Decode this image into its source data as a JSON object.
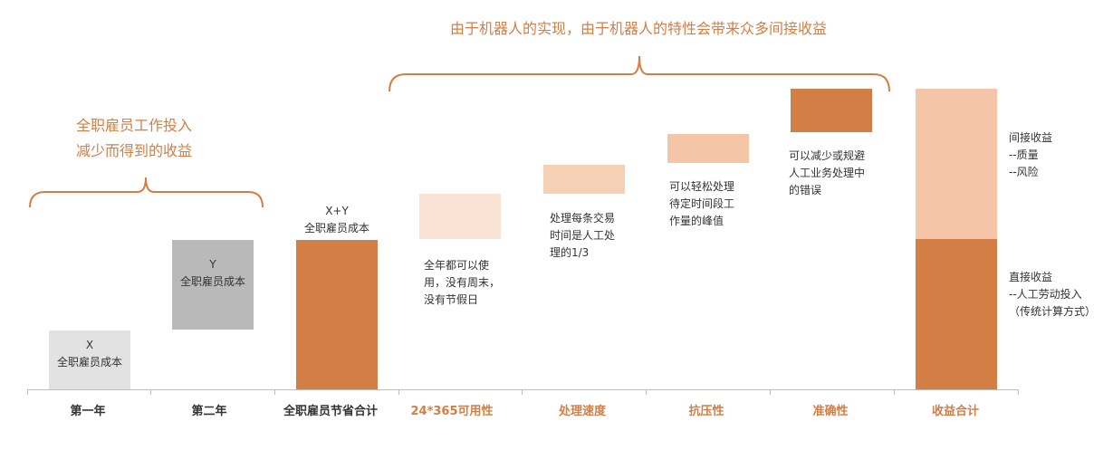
{
  "colors": {
    "grey_light": "#E2E2E2",
    "grey_mid": "#B9B9B9",
    "orange_dark": "#D27E45",
    "orange_light": "#F4C5A6",
    "orange_pale": "#FAE3D4",
    "orange_mid": "#F6D0B5",
    "accent_text": "#D27E45"
  },
  "top_title": "由于机器人的实现，由于机器人的特性会带来众多间接收益",
  "left_title": [
    "全职雇员工作投入",
    "减少而得到的收益"
  ],
  "bars": {
    "year1": {
      "symbol": "X",
      "label": "全职雇员成本"
    },
    "year2": {
      "symbol": "Y",
      "label": "全职雇员成本"
    },
    "total_saving": {
      "symbol": "X+Y",
      "label": "全职雇员成本"
    }
  },
  "notes": {
    "availability": [
      "全年都可以使",
      "用，没有周末，",
      "没有节假日"
    ],
    "speed": [
      "处理每条交易",
      "时间是人工处",
      "理的1/3"
    ],
    "pressure": [
      "可以轻松处理",
      "待定时间段工",
      "作量的峰值"
    ],
    "accuracy": [
      "可以减少或规避",
      "人工业务处理中",
      "的错误"
    ]
  },
  "total_legend": {
    "indirect": [
      "间接收益",
      "--质量",
      "--风险"
    ],
    "direct": [
      "直接收益",
      "--人工劳动投入",
      "（传统计算方式）"
    ]
  },
  "axis_labels": [
    {
      "text": "第一年",
      "accent": false
    },
    {
      "text": "第二年",
      "accent": false
    },
    {
      "text": "全职雇员节省合计",
      "accent": false
    },
    {
      "text": "24*365可用性",
      "accent": true
    },
    {
      "text": "处理速度",
      "accent": true
    },
    {
      "text": "抗压性",
      "accent": true
    },
    {
      "text": "准确性",
      "accent": true
    },
    {
      "text": "收益合计",
      "accent": true
    }
  ]
}
